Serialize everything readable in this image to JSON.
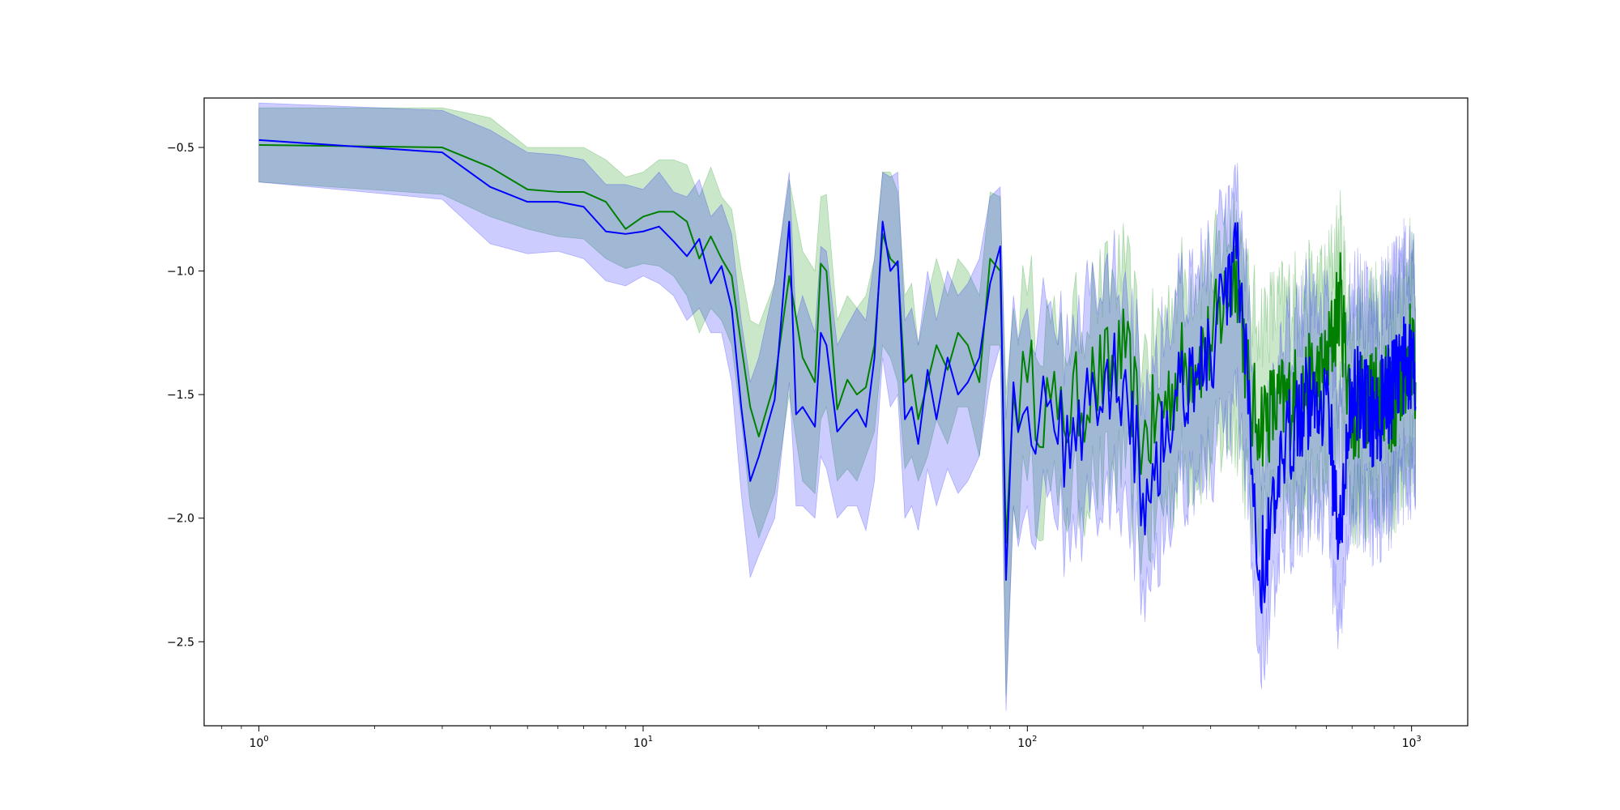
{
  "chart_data": {
    "type": "line",
    "title": "",
    "xlabel": "",
    "ylabel": "",
    "x_scale": "log",
    "xlim": [
      0.72,
      1400
    ],
    "ylim": [
      -2.84,
      -0.3
    ],
    "x_ticks": [
      {
        "value": 1,
        "base": "10",
        "exp": "0"
      },
      {
        "value": 10,
        "base": "10",
        "exp": "1"
      },
      {
        "value": 100,
        "base": "10",
        "exp": "2"
      },
      {
        "value": 1000,
        "base": "10",
        "exp": "3"
      }
    ],
    "y_ticks": [
      {
        "value": -0.5,
        "label": "−0.5"
      },
      {
        "value": -1.0,
        "label": "−1.0"
      },
      {
        "value": -1.5,
        "label": "−1.5"
      },
      {
        "value": -2.0,
        "label": "−2.0"
      },
      {
        "value": -2.5,
        "label": "−2.5"
      }
    ],
    "grid": false,
    "legend": "none",
    "series": [
      {
        "color": "#008000",
        "band_color": "#2ca02c",
        "band_opacity": 0.25,
        "x": [
          1,
          3,
          4,
          5,
          6,
          7,
          8,
          9,
          10,
          11,
          12,
          13,
          14,
          15,
          16,
          17,
          18,
          19,
          20,
          22,
          24,
          26,
          28,
          29,
          30,
          32,
          34,
          36,
          38,
          40,
          42,
          44,
          46,
          48,
          50,
          52,
          55,
          58,
          62,
          66,
          70,
          75,
          80,
          85,
          88,
          92,
          100,
          120,
          150,
          180,
          200,
          250,
          300,
          350,
          380,
          400,
          500,
          600,
          650,
          700,
          800,
          900,
          1000,
          1024
        ],
        "y": [
          -0.49,
          -0.5,
          -0.58,
          -0.67,
          -0.68,
          -0.68,
          -0.72,
          -0.83,
          -0.78,
          -0.76,
          -0.76,
          -0.8,
          -0.95,
          -0.86,
          -0.95,
          -1.02,
          -1.3,
          -1.55,
          -1.67,
          -1.45,
          -1.02,
          -1.35,
          -1.45,
          -0.97,
          -1.0,
          -1.56,
          -1.44,
          -1.5,
          -1.47,
          -1.3,
          -0.85,
          -0.95,
          -0.98,
          -1.45,
          -1.42,
          -1.6,
          -1.45,
          -1.3,
          -1.4,
          -1.25,
          -1.3,
          -1.45,
          -0.95,
          -1.0,
          -2.1,
          -1.5,
          -1.45,
          -1.6,
          -1.45,
          -1.35,
          -1.7,
          -1.4,
          -1.3,
          -0.96,
          -1.55,
          -1.6,
          -1.5,
          -1.4,
          -1.1,
          -1.6,
          -1.45,
          -1.55,
          -1.3,
          -1.45
        ],
        "lower": [
          -0.64,
          -0.69,
          -0.78,
          -0.83,
          -0.86,
          -0.87,
          -0.95,
          -0.99,
          -0.97,
          -0.98,
          -1.02,
          -1.1,
          -1.25,
          -1.15,
          -1.2,
          -1.3,
          -1.6,
          -1.95,
          -2.08,
          -1.9,
          -1.5,
          -1.85,
          -1.9,
          -1.6,
          -1.55,
          -1.85,
          -1.8,
          -1.85,
          -1.75,
          -1.65,
          -1.3,
          -1.35,
          -1.45,
          -1.8,
          -1.75,
          -1.85,
          -1.75,
          -1.6,
          -1.7,
          -1.55,
          -1.55,
          -1.75,
          -1.3,
          -1.3,
          -2.72,
          -1.95,
          -1.85,
          -1.95,
          -1.85,
          -1.8,
          -2.1,
          -1.8,
          -1.75,
          -1.6,
          -1.95,
          -2.0,
          -1.9,
          -1.85,
          -1.6,
          -1.95,
          -1.85,
          -1.9,
          -1.7,
          -1.8
        ],
        "upper": [
          -0.34,
          -0.34,
          -0.38,
          -0.5,
          -0.5,
          -0.5,
          -0.55,
          -0.62,
          -0.6,
          -0.55,
          -0.55,
          -0.57,
          -0.7,
          -0.58,
          -0.7,
          -0.75,
          -1.0,
          -1.2,
          -1.22,
          -1.05,
          -0.63,
          -0.92,
          -1.0,
          -0.7,
          -0.69,
          -1.2,
          -1.1,
          -1.15,
          -1.1,
          -0.95,
          -0.6,
          -0.6,
          -0.68,
          -1.1,
          -1.05,
          -1.3,
          -1.1,
          -0.95,
          -1.1,
          -0.95,
          -1.0,
          -1.1,
          -0.68,
          -0.7,
          -1.5,
          -1.15,
          -1.1,
          -1.3,
          -1.1,
          -1.0,
          -1.35,
          -1.05,
          -1.0,
          -0.75,
          -1.15,
          -1.2,
          -1.1,
          -1.05,
          -0.85,
          -1.25,
          -1.1,
          -1.2,
          -0.95,
          -1.1
        ]
      },
      {
        "color": "#0000ff",
        "band_color": "#0000ff",
        "band_opacity": 0.2,
        "x": [
          1,
          3,
          4,
          5,
          6,
          7,
          8,
          9,
          10,
          11,
          12,
          13,
          14,
          15,
          16,
          17,
          18,
          19,
          20,
          22,
          24,
          25,
          26,
          28,
          29,
          30,
          32,
          34,
          36,
          38,
          40,
          42,
          44,
          46,
          48,
          50,
          52,
          55,
          58,
          62,
          66,
          70,
          75,
          80,
          85,
          88,
          92,
          100,
          120,
          150,
          180,
          200,
          250,
          300,
          350,
          380,
          400,
          500,
          600,
          650,
          700,
          800,
          900,
          1000,
          1024
        ],
        "y": [
          -0.47,
          -0.52,
          -0.66,
          -0.72,
          -0.72,
          -0.74,
          -0.84,
          -0.85,
          -0.84,
          -0.82,
          -0.88,
          -0.94,
          -0.87,
          -1.05,
          -0.98,
          -1.15,
          -1.55,
          -1.85,
          -1.75,
          -1.52,
          -0.8,
          -1.58,
          -1.55,
          -1.63,
          -1.25,
          -1.3,
          -1.65,
          -1.6,
          -1.56,
          -1.63,
          -1.35,
          -0.8,
          -1.0,
          -0.96,
          -1.6,
          -1.55,
          -1.7,
          -1.4,
          -1.6,
          -1.35,
          -1.5,
          -1.45,
          -1.35,
          -1.05,
          -0.9,
          -2.25,
          -1.45,
          -1.55,
          -1.7,
          -1.5,
          -1.4,
          -1.9,
          -1.45,
          -1.35,
          -0.95,
          -1.6,
          -2.25,
          -1.55,
          -1.5,
          -2.1,
          -1.45,
          -1.6,
          -1.45,
          -1.35,
          -1.55
        ],
        "lower": [
          -0.64,
          -0.71,
          -0.89,
          -0.93,
          -0.92,
          -0.95,
          -1.04,
          -1.06,
          -1.02,
          -1.05,
          -1.1,
          -1.2,
          -1.15,
          -1.25,
          -1.25,
          -1.45,
          -1.9,
          -2.24,
          -2.15,
          -2.0,
          -1.45,
          -1.95,
          -1.95,
          -2.0,
          -1.75,
          -1.8,
          -2.0,
          -1.95,
          -1.95,
          -2.05,
          -1.85,
          -1.35,
          -1.55,
          -1.5,
          -2.0,
          -1.95,
          -2.05,
          -1.8,
          -1.95,
          -1.8,
          -1.9,
          -1.85,
          -1.75,
          -1.45,
          -1.3,
          -2.78,
          -1.95,
          -1.95,
          -2.05,
          -1.95,
          -1.85,
          -2.25,
          -1.85,
          -1.8,
          -1.55,
          -2.0,
          -2.55,
          -1.95,
          -1.95,
          -2.45,
          -1.9,
          -2.0,
          -1.9,
          -1.8,
          -1.95
        ],
        "upper": [
          -0.32,
          -0.35,
          -0.43,
          -0.52,
          -0.53,
          -0.55,
          -0.65,
          -0.65,
          -0.67,
          -0.6,
          -0.68,
          -0.7,
          -0.63,
          -0.78,
          -0.73,
          -0.85,
          -1.2,
          -1.45,
          -1.35,
          -1.05,
          -0.6,
          -1.2,
          -1.1,
          -1.25,
          -0.9,
          -0.92,
          -1.3,
          -1.22,
          -1.15,
          -1.2,
          -0.95,
          -0.6,
          -0.62,
          -0.6,
          -1.2,
          -1.15,
          -1.3,
          -1.0,
          -1.2,
          -1.0,
          -1.1,
          -1.05,
          -0.95,
          -0.7,
          -0.66,
          -1.6,
          -1.1,
          -1.15,
          -1.3,
          -1.05,
          -1.0,
          -1.45,
          -1.05,
          -0.95,
          -0.72,
          -1.2,
          -1.75,
          -1.15,
          -1.1,
          -1.55,
          -1.05,
          -1.2,
          -1.05,
          -0.95,
          -1.15
        ]
      }
    ]
  }
}
